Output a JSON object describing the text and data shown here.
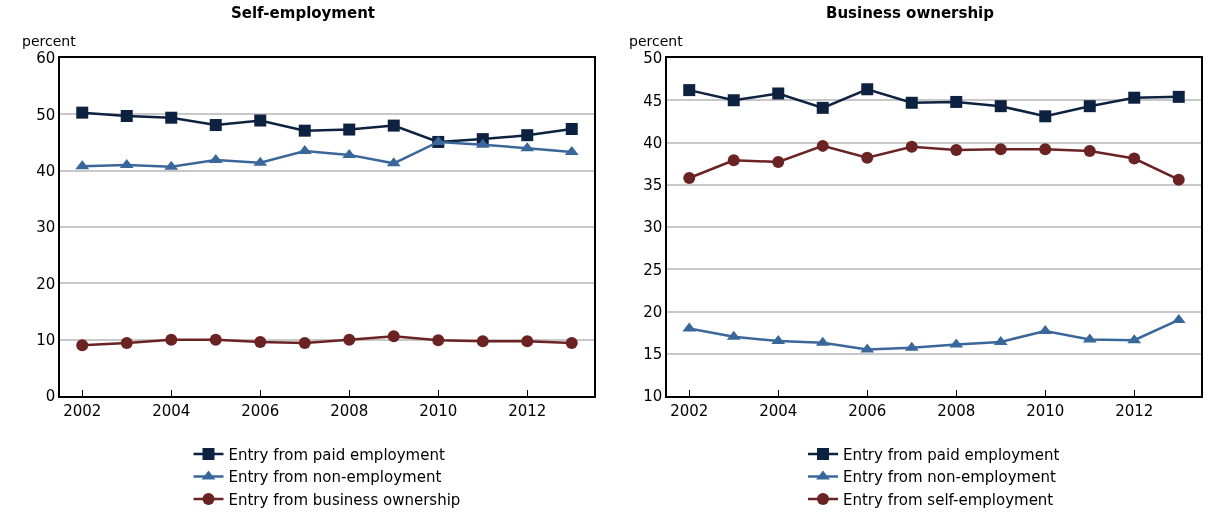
{
  "chart_data": [
    {
      "type": "line",
      "title": "Self-employment",
      "ylabel": "percent",
      "x": [
        2002,
        2003,
        2004,
        2005,
        2006,
        2007,
        2008,
        2009,
        2010,
        2011,
        2012,
        2013
      ],
      "xlim": [
        2001.5,
        2013.5
      ],
      "xticks": [
        2002,
        2004,
        2006,
        2008,
        2010,
        2012
      ],
      "ylim": [
        0,
        60
      ],
      "yticks": [
        0,
        10,
        20,
        30,
        40,
        50,
        60
      ],
      "grid": "y",
      "legend": "bottom",
      "line_style": "solid",
      "series": [
        {
          "name": "Entry from paid employment",
          "color": "#0d2240",
          "marker": "square",
          "values": [
            50.3,
            49.7,
            49.4,
            48.1,
            48.9,
            47.1,
            47.3,
            48.0,
            45.1,
            45.6,
            46.3,
            47.4
          ]
        },
        {
          "name": "Entry from non-employment",
          "color": "#3a679a",
          "marker": "triangle",
          "values": [
            40.8,
            41.0,
            40.7,
            41.9,
            41.4,
            43.5,
            42.8,
            41.3,
            45.1,
            44.6,
            44.0,
            43.3
          ]
        },
        {
          "name": "Entry from business ownership",
          "color": "#6b2223",
          "marker": "circle",
          "values": [
            9.0,
            9.4,
            10.0,
            10.0,
            9.6,
            9.4,
            10.0,
            10.6,
            9.9,
            9.7,
            9.7,
            9.4
          ]
        }
      ]
    },
    {
      "type": "line",
      "title": "Business ownership",
      "ylabel": "percent",
      "x": [
        2002,
        2003,
        2004,
        2005,
        2006,
        2007,
        2008,
        2009,
        2010,
        2011,
        2012,
        2013
      ],
      "xlim": [
        2001.5,
        2013.5
      ],
      "xticks": [
        2002,
        2004,
        2006,
        2008,
        2010,
        2012
      ],
      "ylim": [
        10,
        50
      ],
      "yticks": [
        10,
        15,
        20,
        25,
        30,
        35,
        40,
        45,
        50
      ],
      "grid": "y",
      "legend": "bottom",
      "line_style": "solid",
      "series": [
        {
          "name": "Entry from paid employment",
          "color": "#0d2240",
          "marker": "square",
          "values": [
            46.2,
            45.0,
            45.8,
            44.1,
            46.3,
            44.7,
            44.8,
            44.3,
            43.1,
            44.3,
            45.3,
            45.4
          ]
        },
        {
          "name": "Entry from non-employment",
          "color": "#3a679a",
          "marker": "triangle",
          "values": [
            18.0,
            17.0,
            16.5,
            16.3,
            15.5,
            15.7,
            16.1,
            16.4,
            17.7,
            16.7,
            16.6,
            19.0
          ]
        },
        {
          "name": "Entry from self-employment",
          "color": "#6b2223",
          "marker": "circle",
          "values": [
            35.8,
            37.9,
            37.7,
            39.6,
            38.2,
            39.5,
            39.1,
            39.2,
            39.2,
            39.0,
            38.1,
            35.6
          ]
        }
      ]
    }
  ]
}
